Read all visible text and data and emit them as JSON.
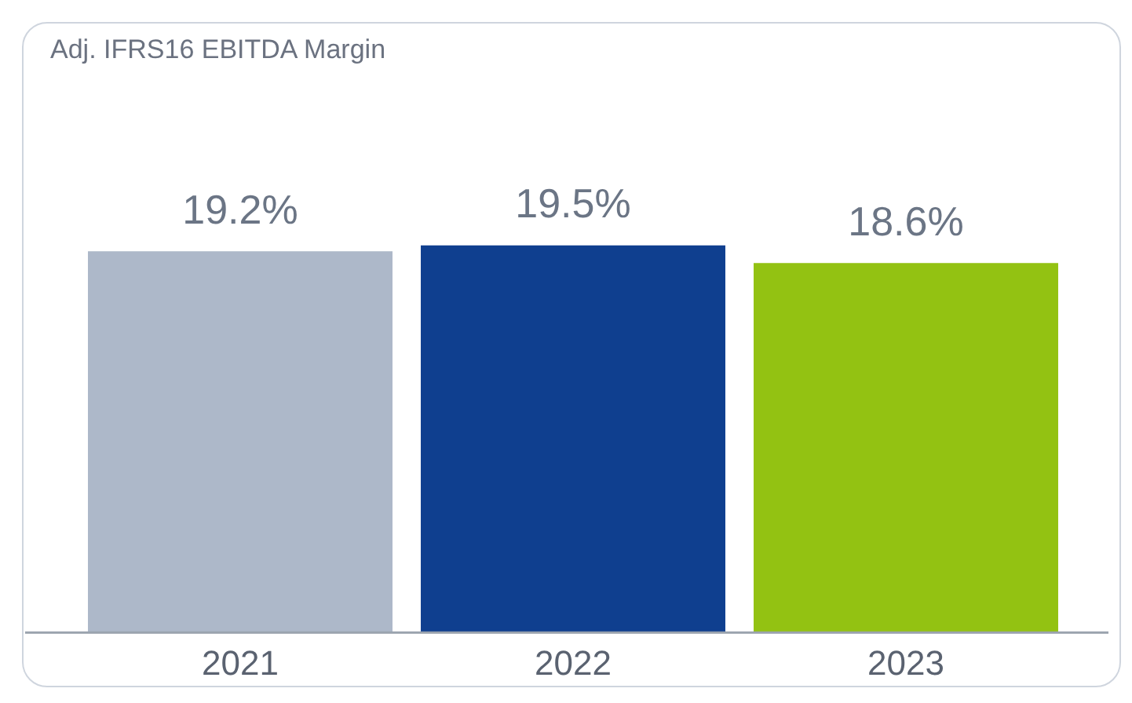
{
  "chart_data": {
    "type": "bar",
    "title": "Adj. IFRS16 EBITDA Margin",
    "categories": [
      "2021",
      "2022",
      "2023"
    ],
    "values": [
      19.2,
      19.5,
      18.6
    ],
    "colors": [
      "#adb8c9",
      "#0f3f8f",
      "#93c212"
    ],
    "value_labels": [
      "19.2%",
      "19.5%",
      "18.6%"
    ],
    "tick_labels": "x",
    "grid": false,
    "legend": false
  }
}
